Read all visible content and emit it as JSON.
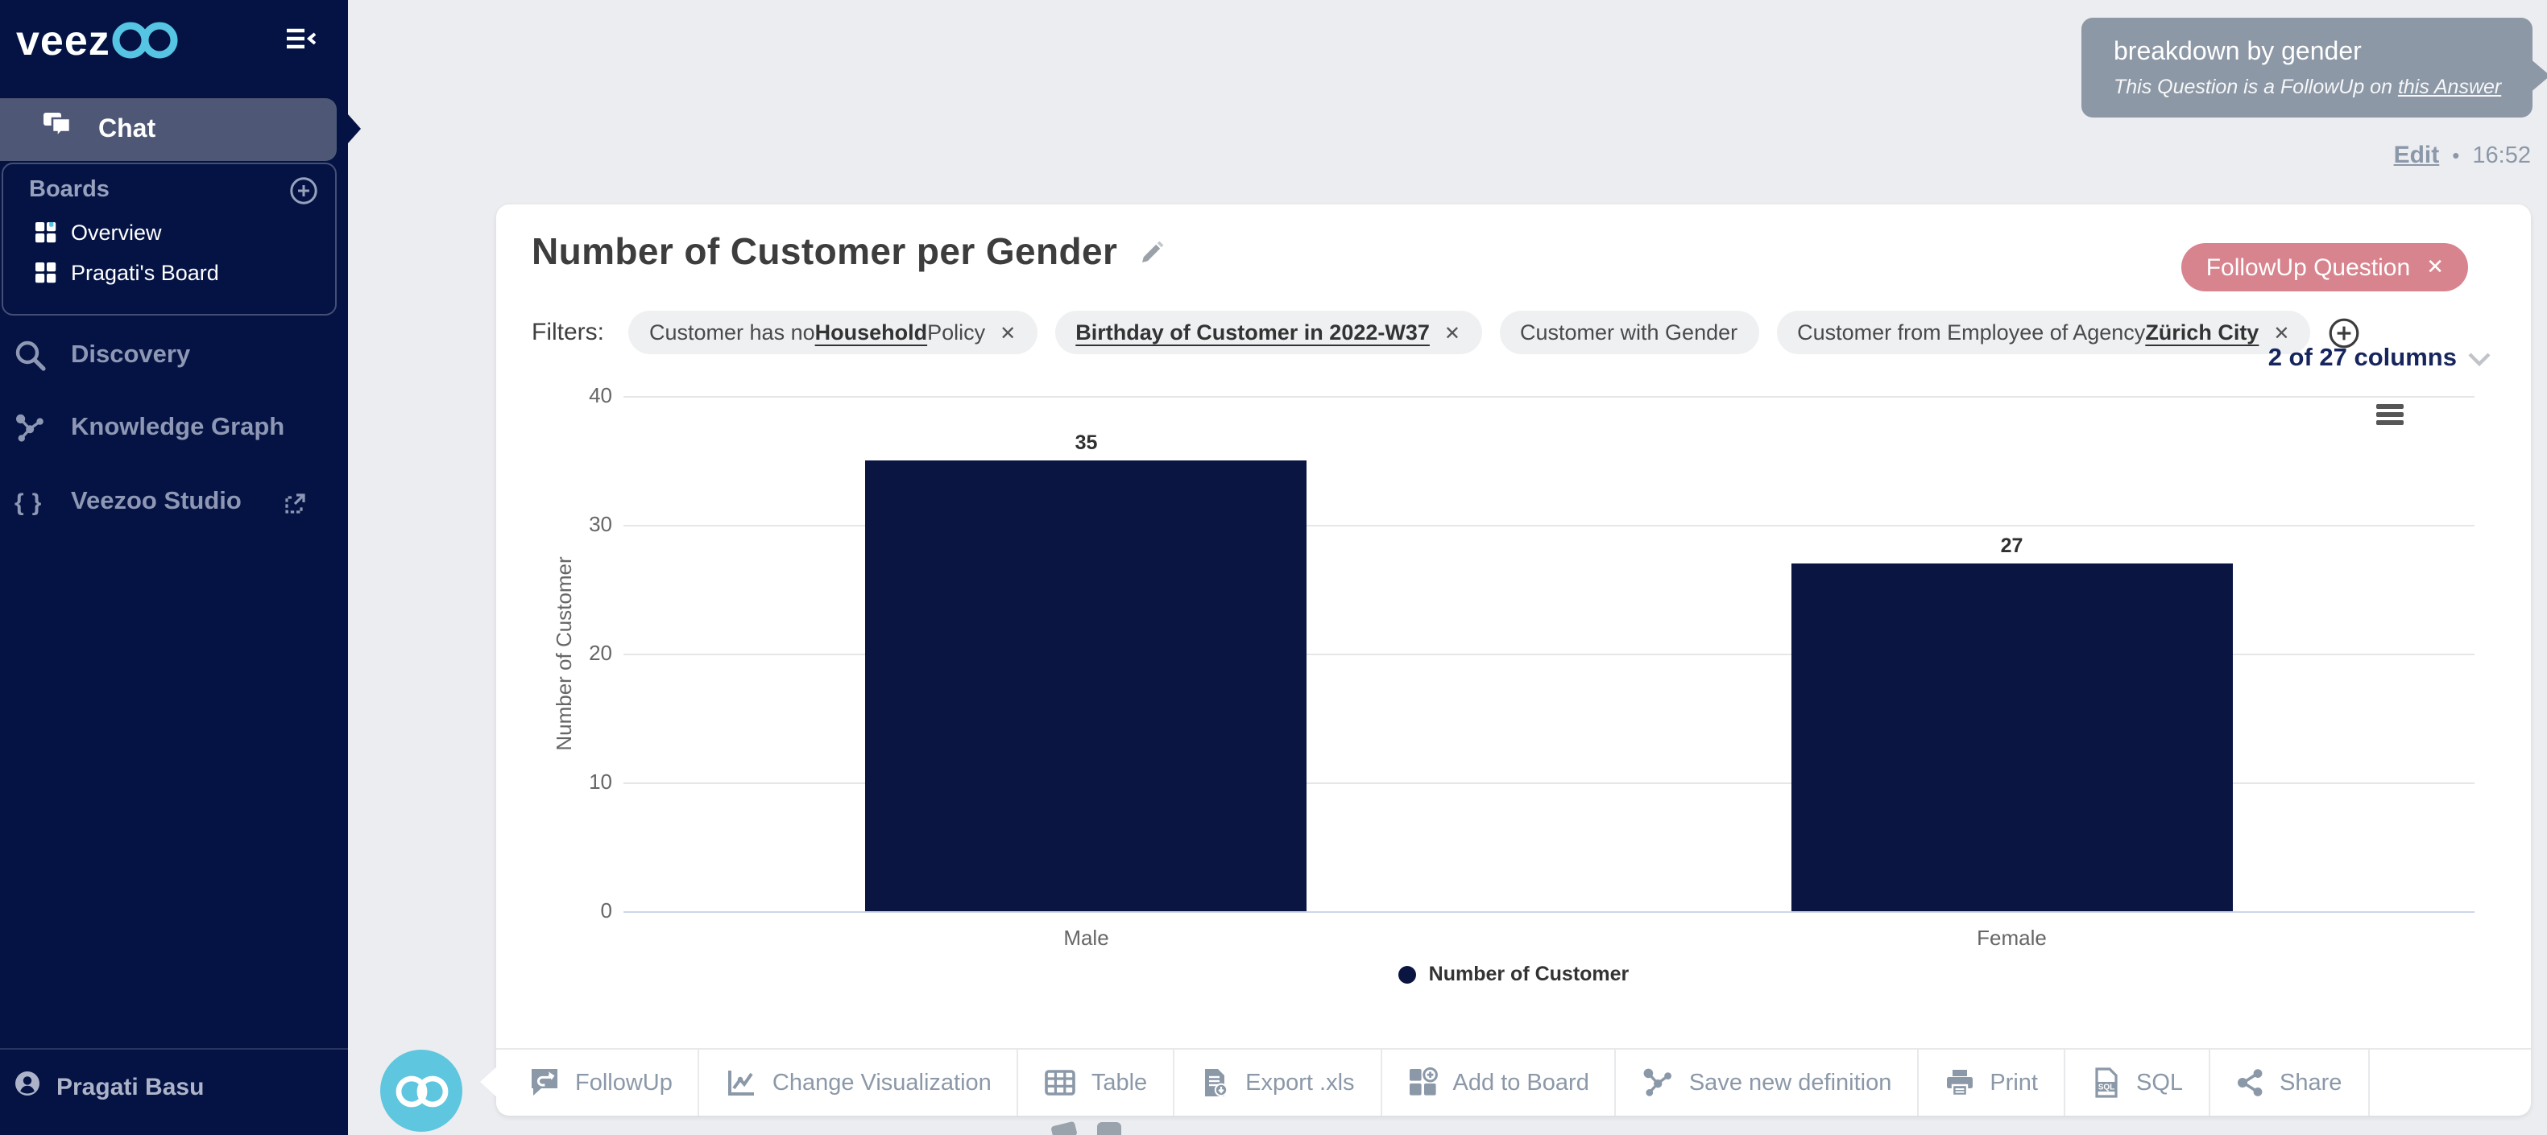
{
  "sidebar": {
    "logo_text": "veez",
    "collapse_tooltip": "collapse",
    "nav": {
      "chat": "Chat",
      "discovery": "Discovery",
      "knowledge_graph": "Knowledge Graph",
      "veezoo_studio": "Veezoo Studio"
    },
    "boards": {
      "header": "Boards",
      "items": [
        "Overview",
        "Pragati's Board"
      ]
    },
    "user": "Pragati Basu"
  },
  "chat": {
    "question": "breakdown by gender",
    "followup_note_prefix": "This Question is a FollowUp on ",
    "followup_note_link": "this Answer",
    "edit_label": "Edit",
    "separator": "•",
    "time": "16:52"
  },
  "card": {
    "title": "Number of Customer per Gender",
    "followup_badge": "FollowUp Question",
    "followup_badge_close": "✕",
    "filters_label": "Filters:",
    "filters": [
      {
        "pre": "Customer has no ",
        "strong": "Household",
        "post": " Policy",
        "closable": true
      },
      {
        "pre": "",
        "strong": "Birthday of Customer in 2022-W37",
        "post": "",
        "closable": true
      },
      {
        "pre": "Customer with Gender",
        "strong": "",
        "post": "",
        "closable": false
      },
      {
        "pre": "Customer from Employee of Agency ",
        "strong": "Zürich City",
        "post": "",
        "closable": true
      }
    ],
    "pill_close": "✕",
    "columns_summary": "2 of 27 columns",
    "toolbar": [
      {
        "icon": "followup-icon",
        "label": "FollowUp"
      },
      {
        "icon": "change-visualization-icon",
        "label": "Change Visualization"
      },
      {
        "icon": "table-icon",
        "label": "Table"
      },
      {
        "icon": "export-xls-icon",
        "label": "Export .xls"
      },
      {
        "icon": "add-to-board-icon",
        "label": "Add to Board"
      },
      {
        "icon": "save-definition-icon",
        "label": "Save new definition"
      },
      {
        "icon": "print-icon",
        "label": "Print"
      },
      {
        "icon": "sql-icon",
        "label": "SQL"
      },
      {
        "icon": "share-icon",
        "label": "Share"
      }
    ]
  },
  "chart_data": {
    "type": "bar",
    "title": "",
    "categories": [
      "Male",
      "Female"
    ],
    "values": [
      35,
      27
    ],
    "series": [
      {
        "name": "Number of Customer",
        "values": [
          35,
          27
        ]
      }
    ],
    "xlabel": "",
    "ylabel": "Number of Customer",
    "ylim": [
      0,
      40
    ],
    "yticks": [
      0,
      10,
      20,
      30,
      40
    ],
    "grid": "horizontal-only",
    "legend_position": "bottom-center",
    "data_labels": true,
    "bar_color": "#0a1541"
  },
  "colors": {
    "sidebar_bg": "#041343",
    "accent_blue": "#56c5e4",
    "selected_item": "#4e5876",
    "bubble": "#8d98a6",
    "followup_pill": "#d8848e",
    "bar": "#0a1541",
    "page_bg": "#ecedf0"
  }
}
